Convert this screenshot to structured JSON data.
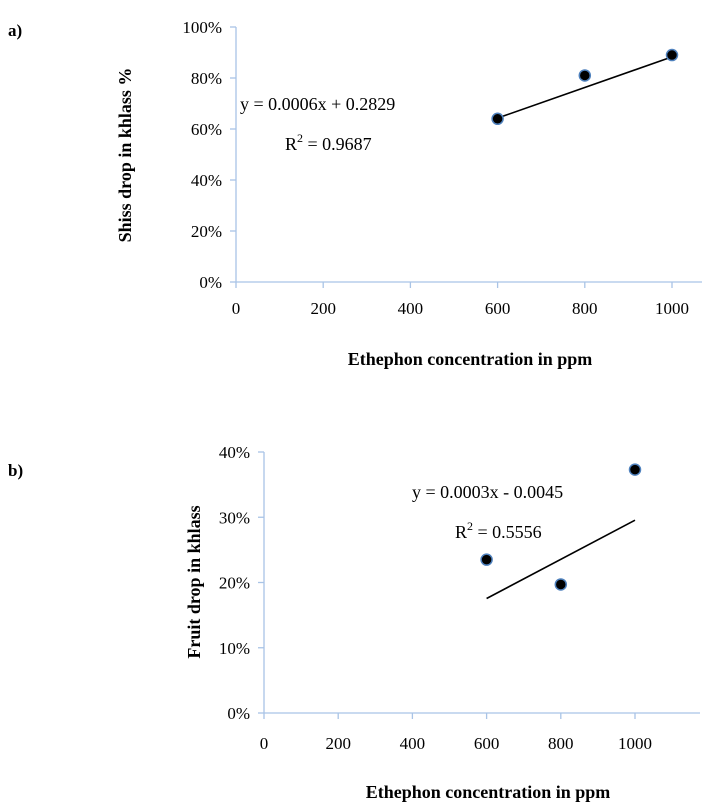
{
  "chart_data": [
    {
      "panel_label": "a)",
      "type": "scatter",
      "xlabel": "Ethephon concentration in ppm",
      "ylabel": "Shiss drop in khlass %",
      "x_ticks": [
        "0",
        "200",
        "400",
        "600",
        "800",
        "1000"
      ],
      "y_ticks": [
        "0%",
        "20%",
        "40%",
        "60%",
        "80%",
        "100%"
      ],
      "xlim": [
        0,
        1100
      ],
      "ylim": [
        0,
        1.0
      ],
      "points": [
        {
          "x": 600,
          "y": 0.64
        },
        {
          "x": 800,
          "y": 0.81
        },
        {
          "x": 1000,
          "y": 0.89
        }
      ],
      "trendline": {
        "slope": 0.0006,
        "intercept": 0.2829,
        "x_range": [
          600,
          1000
        ]
      },
      "equation": "y = 0.0006x + 0.2829",
      "r2_label": "R",
      "r2_sup": "2",
      "r2_value": " = 0.9687"
    },
    {
      "panel_label": "b)",
      "type": "scatter",
      "xlabel": "Ethephon concentration in ppm",
      "ylabel": "Fruit drop in khlass",
      "x_ticks": [
        "0",
        "200",
        "400",
        "600",
        "800",
        "1000"
      ],
      "y_ticks": [
        "0%",
        "10%",
        "20%",
        "30%",
        "40%"
      ],
      "xlim": [
        0,
        1100
      ],
      "ylim": [
        0,
        0.4
      ],
      "points": [
        {
          "x": 600,
          "y": 0.235
        },
        {
          "x": 800,
          "y": 0.197
        },
        {
          "x": 1000,
          "y": 0.373
        }
      ],
      "trendline": {
        "slope": 0.0003,
        "intercept": -0.0045,
        "x_range": [
          600,
          1000
        ]
      },
      "equation": "y = 0.0003x - 0.0045",
      "r2_label": "R",
      "r2_sup": "2",
      "r2_value": " = 0.5556"
    }
  ]
}
